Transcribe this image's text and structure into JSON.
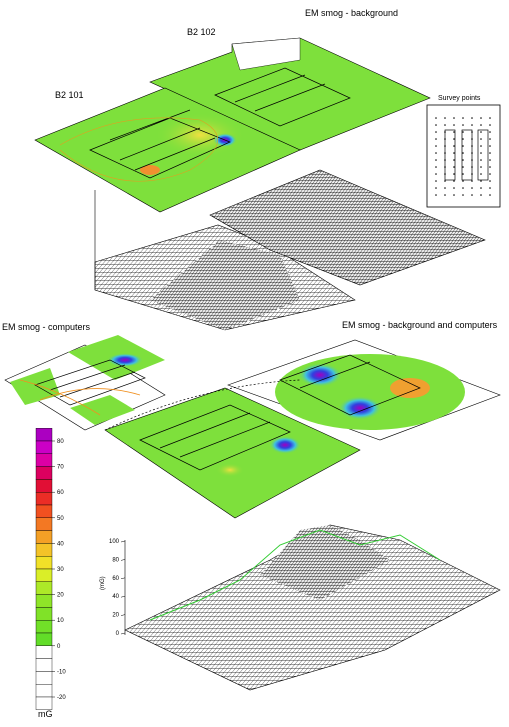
{
  "labels": {
    "background": "EM smog -  background",
    "b2_102": "B2 102",
    "b2_101": "B2 101",
    "survey_points": "Survey points",
    "computers": "EM smog - computers",
    "background_computers": "EM smog - background and computers"
  },
  "surface_axis": {
    "unit": "(mG)",
    "ticks": [
      0,
      20,
      40,
      60,
      80,
      100
    ]
  },
  "colorbar": {
    "unit": "mG",
    "ticks": [
      80,
      70,
      60,
      50,
      40,
      30,
      20,
      10,
      0,
      -10,
      -20
    ]
  }
}
